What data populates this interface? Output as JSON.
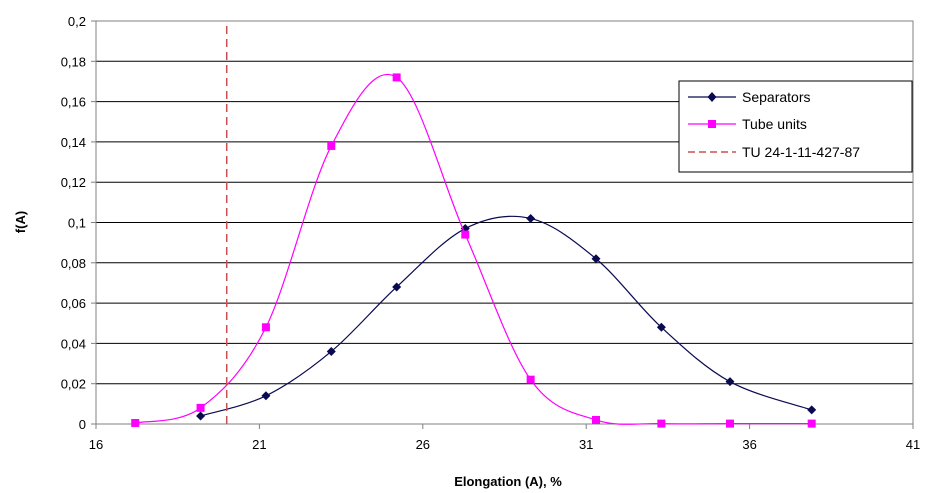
{
  "chart_data": {
    "type": "line",
    "xlabel": "Elongation (A), %",
    "ylabel": "f(A)",
    "xlim": [
      16,
      41
    ],
    "ylim": [
      0,
      0.2
    ],
    "x_ticks": [
      16,
      21,
      26,
      31,
      36,
      41
    ],
    "x_tick_labels": [
      "16",
      "21",
      "26",
      "31",
      "36",
      "41"
    ],
    "y_ticks": [
      0,
      0.02,
      0.04,
      0.06,
      0.08,
      0.1,
      0.12,
      0.14,
      0.16,
      0.18,
      0.2
    ],
    "y_tick_labels": [
      "0",
      "0,02",
      "0,04",
      "0,06",
      "0,08",
      "0,1",
      "0,12",
      "0,14",
      "0,16",
      "0,18",
      "0,2"
    ],
    "grid": "horizontal",
    "legend_position": "right",
    "series": [
      {
        "name": "Separators",
        "color": "#0a0a50",
        "marker": "diamond",
        "x": [
          19.2,
          21.2,
          23.2,
          25.2,
          27.3,
          29.3,
          31.3,
          33.3,
          35.4,
          37.9
        ],
        "values": [
          0.004,
          0.014,
          0.036,
          0.068,
          0.097,
          0.102,
          0.082,
          0.048,
          0.021,
          0.007
        ]
      },
      {
        "name": "Tube units",
        "color": "#ff00ff",
        "marker": "square",
        "x": [
          17.2,
          19.2,
          21.2,
          23.2,
          25.2,
          27.3,
          29.3,
          31.3,
          33.3,
          35.4,
          37.9
        ],
        "values": [
          0.0005,
          0.008,
          0.048,
          0.138,
          0.172,
          0.094,
          0.022,
          0.002,
          0.0002,
          0.0002,
          0.0002
        ]
      },
      {
        "name": "TU 24-1-11-427-87",
        "color": "#c8504f",
        "style": "dashed",
        "x": [
          20,
          20
        ],
        "values": [
          0,
          0.2
        ]
      }
    ]
  }
}
